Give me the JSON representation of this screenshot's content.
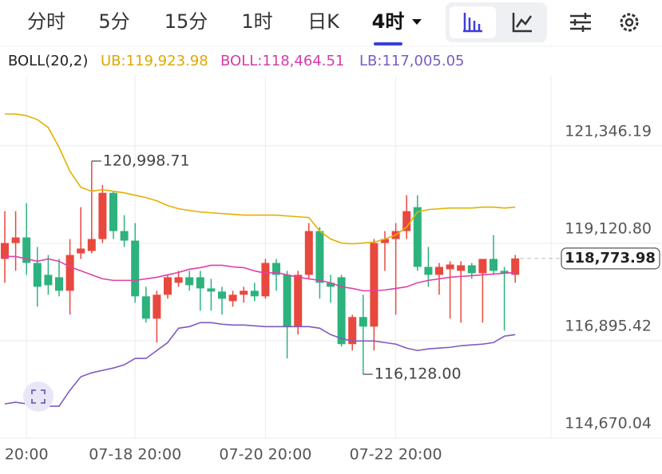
{
  "header": {
    "tabs": [
      "分时",
      "5分",
      "15分",
      "1时",
      "日K",
      "4时"
    ],
    "active_tab": 5
  },
  "chart_data": {
    "type": "candlestick",
    "legend": [
      {
        "text": "BOLL(20,2)",
        "color": "#222222"
      },
      {
        "text": "UB:119,923.98",
        "color": "#e0a800"
      },
      {
        "text": "BOLL:118,464.51",
        "color": "#d63ca8"
      },
      {
        "text": "LB:117,005.05",
        "color": "#7a5cc4"
      }
    ],
    "categories": [
      null,
      null,
      "20:00",
      null,
      null,
      null,
      null,
      null,
      null,
      null,
      null,
      null,
      "07-18 20:00",
      null,
      null,
      null,
      null,
      null,
      null,
      null,
      null,
      null,
      null,
      null,
      "07-20 20:00",
      null,
      null,
      null,
      null,
      null,
      null,
      null,
      null,
      null,
      null,
      null,
      "07-22 20:00",
      null,
      null,
      null,
      null,
      null,
      null,
      null,
      null,
      null,
      null,
      null
    ],
    "open": [
      118764,
      119127,
      119254,
      118672,
      118400,
      118345,
      118036,
      118891,
      118945,
      119218,
      120273,
      119400,
      119182,
      117909,
      117399,
      117945,
      118218,
      118345,
      118345,
      118090,
      118018,
      117799,
      117945,
      118036,
      117909,
      118672,
      118400,
      117217,
      118400,
      119400,
      118218,
      118345,
      116817,
      117436,
      117217,
      119127,
      119218,
      119400,
      119946,
      118582,
      118400,
      118527,
      118491,
      118618,
      118436,
      118764,
      118491,
      118400
    ],
    "high": [
      119855,
      119855,
      120036,
      119036,
      118854,
      118764,
      119218,
      119946,
      120998.71,
      120455,
      120309,
      119764,
      119582,
      118127,
      118036,
      118400,
      118491,
      118491,
      118491,
      118309,
      118127,
      118036,
      118127,
      118218,
      118764,
      118764,
      118491,
      118491,
      119582,
      119491,
      118400,
      118400,
      117490,
      117945,
      119218,
      119400,
      119582,
      120218,
      120218,
      119036,
      118672,
      118709,
      118709,
      118672,
      118764,
      119309,
      118582,
      118854
    ],
    "low": [
      118218,
      118491,
      118400,
      117672,
      117945,
      117909,
      117490,
      118764,
      118891,
      119127,
      119218,
      119036,
      117763,
      117308,
      116853,
      117854,
      118127,
      118036,
      117581,
      117581,
      117490,
      117672,
      117763,
      117799,
      117854,
      118036,
      116489,
      117035,
      118309,
      117854,
      117763,
      116762,
      116671,
      116128,
      116671,
      118491,
      117490,
      119218,
      118491,
      118127,
      117945,
      117399,
      117308,
      118309,
      117308,
      118400,
      117126,
      118218
    ],
    "close": [
      119127,
      119254,
      118672,
      118127,
      118163,
      118036,
      118854,
      119000,
      119218,
      120273,
      119400,
      119182,
      117909,
      117399,
      117945,
      118345,
      118345,
      118163,
      118090,
      118018,
      117854,
      117945,
      118036,
      117909,
      118672,
      118400,
      117217,
      118400,
      119400,
      118218,
      118127,
      116817,
      117436,
      117217,
      119127,
      119218,
      119400,
      119855,
      118582,
      118400,
      118582,
      118636,
      118618,
      118436,
      118764,
      118491,
      118436,
      118773.98
    ],
    "up_color": "#e8483e",
    "down_color": "#2db27d",
    "overlays": [
      {
        "color": "#e5b000",
        "values": [
          122074,
          122074,
          122037,
          121946,
          121765,
          121310,
          120764,
          120400,
          120309,
          120346,
          120309,
          120273,
          120218,
          120164,
          120091,
          119982,
          119909,
          119873,
          119836,
          119818,
          119800,
          119782,
          119764,
          119764,
          119764,
          119764,
          119745,
          119727,
          119709,
          119400,
          119218,
          119127,
          119109,
          119127,
          119145,
          119218,
          119309,
          119491,
          119836,
          119891,
          119909,
          119927,
          119927,
          119927,
          119946,
          119946,
          119927,
          119946
        ]
      },
      {
        "color": "#e040a8",
        "values": [
          118818,
          118818,
          118764,
          118709,
          118764,
          118709,
          118582,
          118491,
          118400,
          118309,
          118273,
          118273,
          118273,
          118309,
          118345,
          118400,
          118455,
          118527,
          118564,
          118618,
          118618,
          118582,
          118564,
          118491,
          118436,
          118455,
          118400,
          118345,
          118309,
          118273,
          118218,
          118127,
          118090,
          118036,
          118036,
          118054,
          118090,
          118127,
          118218,
          118273,
          118309,
          118345,
          118364,
          118382,
          118400,
          118418,
          118436,
          118455
        ]
      },
      {
        "color": "#7e5bbf",
        "values": [
          115452,
          115489,
          115452,
          115398,
          115398,
          115398,
          115762,
          116071,
          116162,
          116217,
          116271,
          116344,
          116489,
          116489,
          116671,
          116853,
          117181,
          117217,
          117308,
          117308,
          117271,
          117253,
          117253,
          117235,
          117217,
          117217,
          117217,
          117217,
          117217,
          117181,
          117035,
          116944,
          116889,
          116889,
          116889,
          116853,
          116817,
          116726,
          116671,
          116708,
          116726,
          116744,
          116780,
          116799,
          116817,
          116853,
          116999,
          117035
        ]
      }
    ],
    "annotations": [
      {
        "text": "120,998.71",
        "x": 8,
        "y": 120998.71
      },
      {
        "text": "116,128.00",
        "x": 33,
        "y": 116128
      }
    ],
    "last_price": {
      "value": 118773.98,
      "label": "118,773.98"
    },
    "ylim": [
      114670.04,
      122947
    ],
    "yticks": [
      {
        "value": 121346.19,
        "label": "121,346.19"
      },
      {
        "value": 119120.8,
        "label": "119,120.80"
      },
      {
        "value": 116895.42,
        "label": "116,895.42"
      },
      {
        "value": 114670.04,
        "label": "114,670.04"
      }
    ],
    "grid": true
  }
}
